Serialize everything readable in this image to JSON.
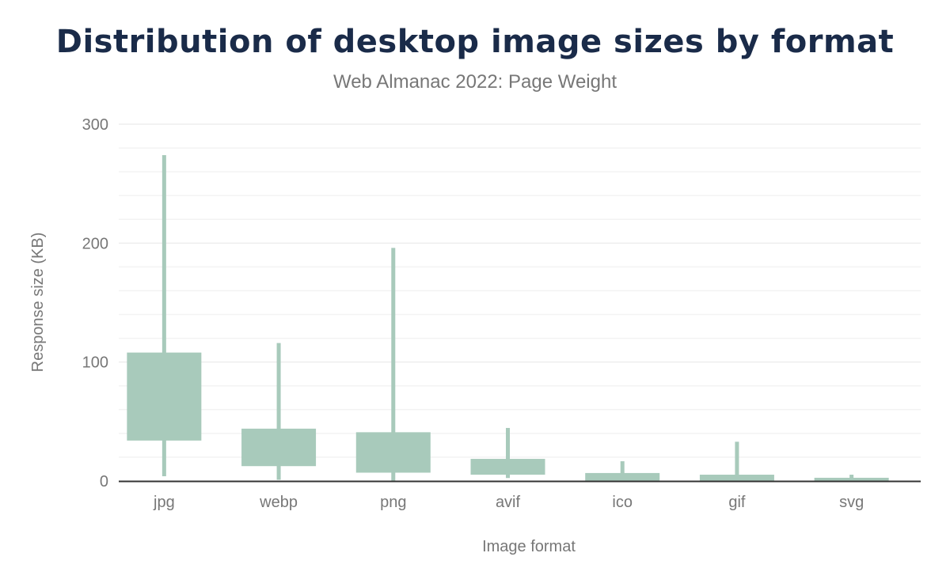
{
  "chart_data": {
    "type": "box",
    "title": "Distribution of desktop image sizes by format",
    "subtitle": "Web Almanac 2022: Page Weight",
    "xlabel": "Image format",
    "ylabel": "Response size (KB)",
    "ylim": [
      0,
      300
    ],
    "yticks": [
      0,
      100,
      200,
      300
    ],
    "grid": true,
    "color": "#a8cabb",
    "categories": [
      "jpg",
      "webp",
      "png",
      "avif",
      "ico",
      "gif",
      "svg"
    ],
    "series": [
      {
        "whisker_low": [
          4,
          1,
          0,
          2.5,
          0,
          0,
          0
        ],
        "box_low": [
          34,
          12.5,
          7,
          5.3,
          0.3,
          0.3,
          0.3
        ],
        "box_high": [
          108,
          44,
          41,
          18.6,
          6.7,
          5.3,
          2.7
        ],
        "whisker_high": [
          274,
          116,
          196,
          44.6,
          16.6,
          33,
          5.3
        ]
      }
    ]
  }
}
